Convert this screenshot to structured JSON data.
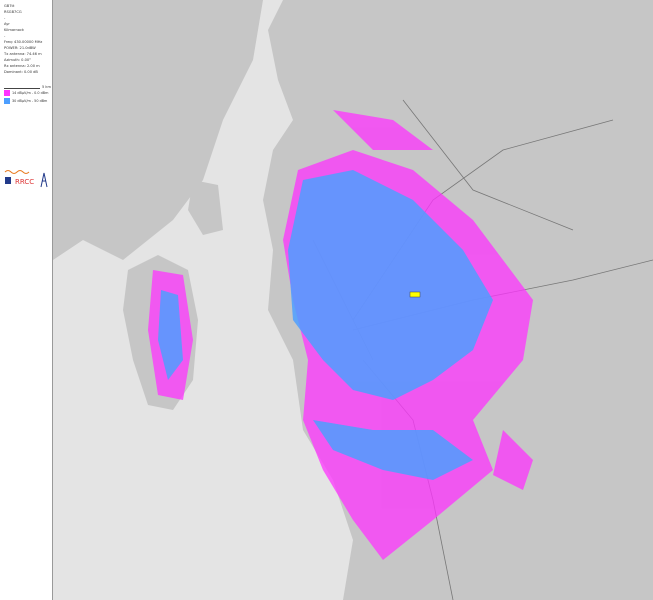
{
  "info": {
    "lines": [
      "GB7tt",
      "RSGB7CG",
      "-",
      "Ayr",
      "Kilmarnock",
      "-",
      "Freq: 430.00000 MHz",
      "POWER: 21.0dBW",
      "Tx antenna: 74.46 m",
      "Azimuth: 0.00°",
      "Rx antenna: 2.00 m",
      "Dominant: 0.00 dB"
    ]
  },
  "scale": {
    "label": "5 km"
  },
  "legend": [
    {
      "label": "14 dBµV/m - 0.0 dBm",
      "color": "#ff33ff"
    },
    {
      "label": "30 dBµV/m - 50 dBm",
      "color": "#4d9fff"
    }
  ],
  "logo": {
    "text": "RRCC"
  },
  "colors": {
    "sea": "#e4e4e4",
    "land": "#c8c8c8",
    "coverage_strong": "#4d9fff",
    "coverage_weak": "#ff33ff"
  }
}
